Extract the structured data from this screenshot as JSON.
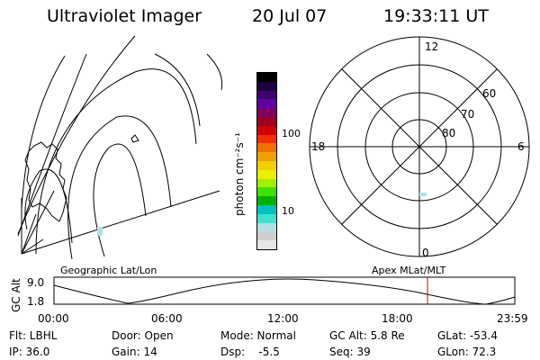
{
  "header": {
    "instrument": "Ultraviolet Imager",
    "date": "20 Jul 07",
    "time": "19:33:11 UT"
  },
  "colorbar": {
    "unit_label": "photon cm⁻²s⁻¹",
    "ticks": [
      "100",
      "10"
    ],
    "colors": [
      "#e6e6e6",
      "#cfcfcf",
      "#b0e0e6",
      "#40e0d0",
      "#00c0c0",
      "#00b000",
      "#40e000",
      "#a0f000",
      "#e8f000",
      "#f0d000",
      "#f0a000",
      "#f07000",
      "#f03000",
      "#d00000",
      "#a00020",
      "#800060",
      "#6000a0",
      "#400070",
      "#200040",
      "#000000"
    ]
  },
  "map_labels": {
    "left": "Geographic Lat/Lon",
    "right": "Apex MLat/MLT"
  },
  "polar": {
    "mlt_labels": {
      "top": "12",
      "right": "6",
      "bottom": "0",
      "left": "18"
    },
    "lat_labels": [
      "60",
      "70",
      "80"
    ]
  },
  "timeline": {
    "axis_label": "GC Alt",
    "y_ticks": [
      "9.0",
      "1.8"
    ],
    "x_ticks": [
      "00:00",
      "06:00",
      "12:00",
      "18:00",
      "23:59"
    ],
    "current_marker_color": "#cc0000"
  },
  "status": {
    "flt": "Flt: LBHL",
    "ip": "IP: 36.0",
    "door": "Door: Open",
    "gain": "Gain: 14",
    "mode": "Mode: Normal",
    "dsp": "Dsp:    -5.5",
    "gcalt": "GC Alt: 5.8 Re",
    "seq": "Seq: 39",
    "glat": "GLat: -53.4",
    "glon": "GLon: 72.3"
  }
}
